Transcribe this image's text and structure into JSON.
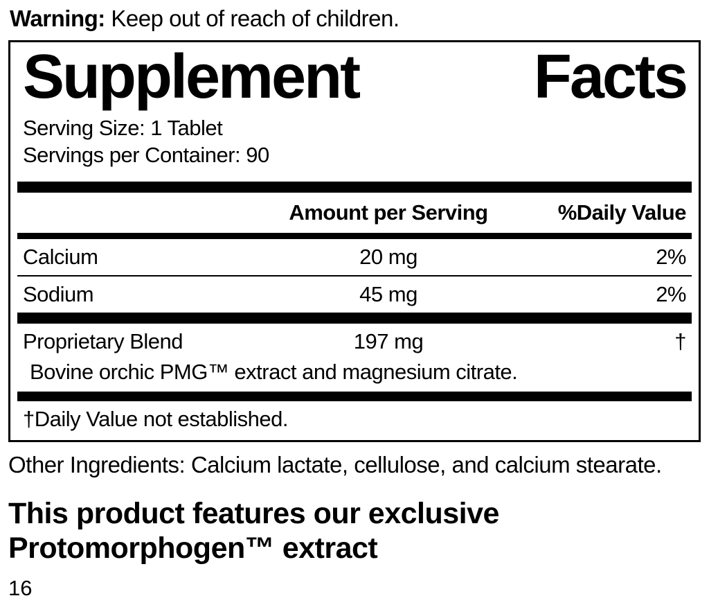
{
  "warning": {
    "label": "Warning:",
    "text": " Keep out of reach of children."
  },
  "panel": {
    "title_left": "Supplement",
    "title_right": "Facts",
    "serving_size": "Serving Size: 1 Tablet",
    "servings_per_container": "Servings per Container: 90",
    "columns": {
      "amount": "Amount per Serving",
      "daily_value": "%Daily Value"
    },
    "rows": [
      {
        "name": "Calcium",
        "amount": "20 mg",
        "dv": "2%"
      },
      {
        "name": "Sodium",
        "amount": "45 mg",
        "dv": "2%"
      }
    ],
    "blend": {
      "name": "Proprietary Blend",
      "amount": "197 mg",
      "dv": "†",
      "description": "Bovine orchic PMG™ extract and magnesium citrate."
    },
    "footnote": "†Daily Value not established."
  },
  "other_ingredients": "Other Ingredients: Calcium lactate, cellulose, and calcium stearate.",
  "feature": {
    "line1": "This product features our exclusive",
    "line2": "Protomorphogen™ extract"
  },
  "page_number": "16"
}
